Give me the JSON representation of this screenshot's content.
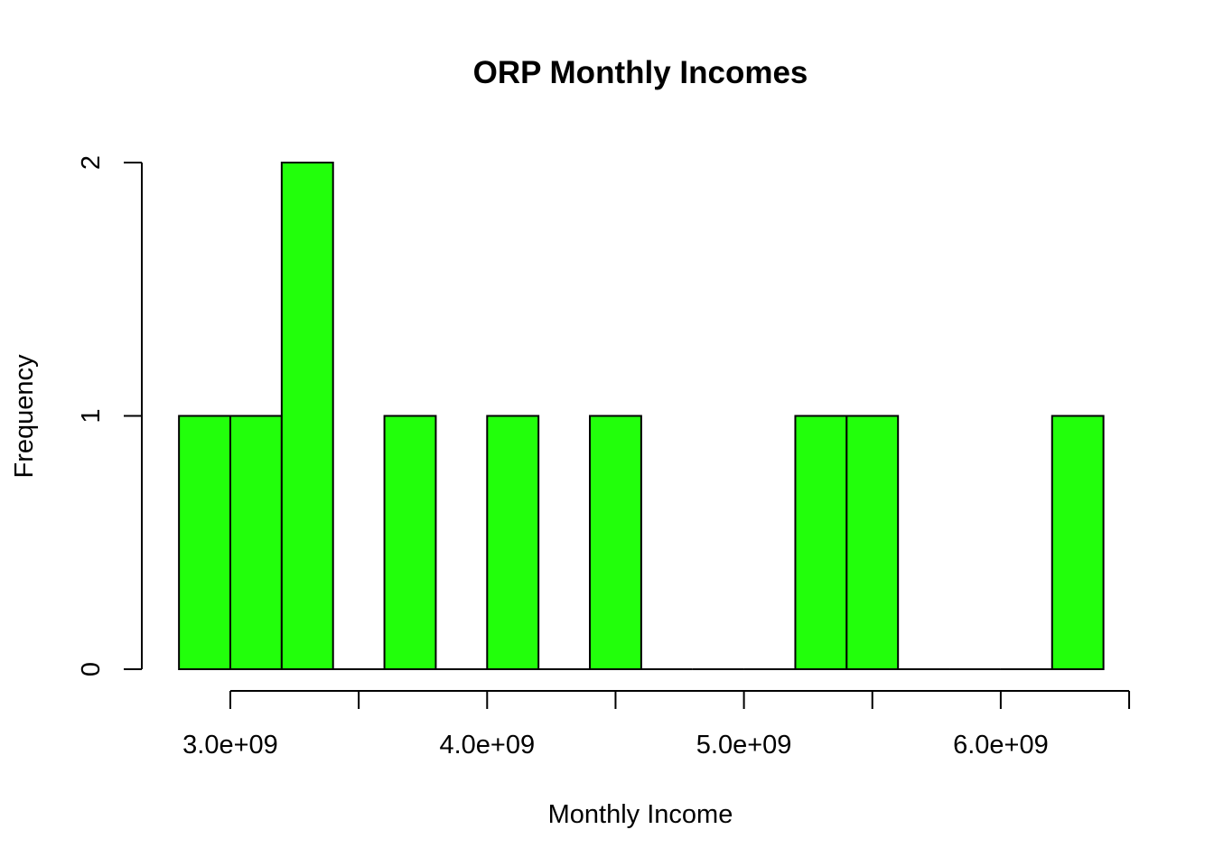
{
  "chart_data": {
    "type": "bar",
    "title": "ORP Monthly Incomes",
    "xlabel": "Monthly Income",
    "ylabel": "Frequency",
    "bar_color": "#22ff0b",
    "bin_edges": [
      2800000000,
      3000000000,
      3200000000,
      3400000000,
      3600000000,
      3800000000,
      4000000000,
      4200000000,
      4400000000,
      4600000000,
      4800000000,
      5000000000,
      5200000000,
      5400000000,
      5600000000,
      5800000000,
      6000000000,
      6200000000,
      6400000000
    ],
    "counts": [
      1,
      1,
      2,
      0,
      1,
      0,
      1,
      0,
      1,
      0,
      0,
      0,
      1,
      1,
      0,
      0,
      0,
      1
    ],
    "xlim": [
      2800000000,
      6400000000
    ],
    "ylim": [
      0,
      2
    ],
    "x_axis_ticks": [
      3000000000,
      3500000000,
      4000000000,
      4500000000,
      5000000000,
      5500000000,
      6000000000,
      6500000000
    ],
    "x_tick_labels": [
      {
        "value": 3000000000,
        "label": "3.0e+09"
      },
      {
        "value": 4000000000,
        "label": "4.0e+09"
      },
      {
        "value": 5000000000,
        "label": "5.0e+09"
      },
      {
        "value": 6000000000,
        "label": "6.0e+09"
      }
    ],
    "y_ticks": [
      {
        "value": 0,
        "label": "0"
      },
      {
        "value": 1,
        "label": "1"
      },
      {
        "value": 2,
        "label": "2"
      }
    ],
    "grid": false,
    "legend": "none"
  }
}
